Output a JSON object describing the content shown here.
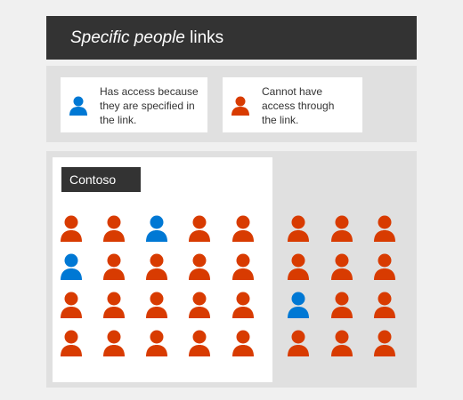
{
  "title": {
    "italic_part": "Specific people",
    "rest": " links"
  },
  "legend": {
    "has_access": {
      "lines": [
        "Has access because",
        "they are specified in",
        "the link."
      ],
      "color": "#0078d4",
      "icon": "person-icon"
    },
    "no_access": {
      "lines": [
        "Cannot have",
        "access through",
        "the link."
      ],
      "color": "#d83b01",
      "icon": "person-icon"
    }
  },
  "org": {
    "label": "Contoso"
  },
  "colors": {
    "blue": "#0078d4",
    "orange": "#d83b01"
  },
  "people_inside": [
    [
      "orange",
      "orange",
      "blue",
      "orange",
      "orange"
    ],
    [
      "blue",
      "orange",
      "orange",
      "orange",
      "orange"
    ],
    [
      "orange",
      "orange",
      "orange",
      "orange",
      "orange"
    ],
    [
      "orange",
      "orange",
      "orange",
      "orange",
      "orange"
    ]
  ],
  "people_outside": [
    [
      "orange",
      "orange",
      "orange"
    ],
    [
      "orange",
      "orange",
      "orange"
    ],
    [
      "blue",
      "orange",
      "orange"
    ],
    [
      "orange",
      "orange",
      "orange"
    ]
  ]
}
